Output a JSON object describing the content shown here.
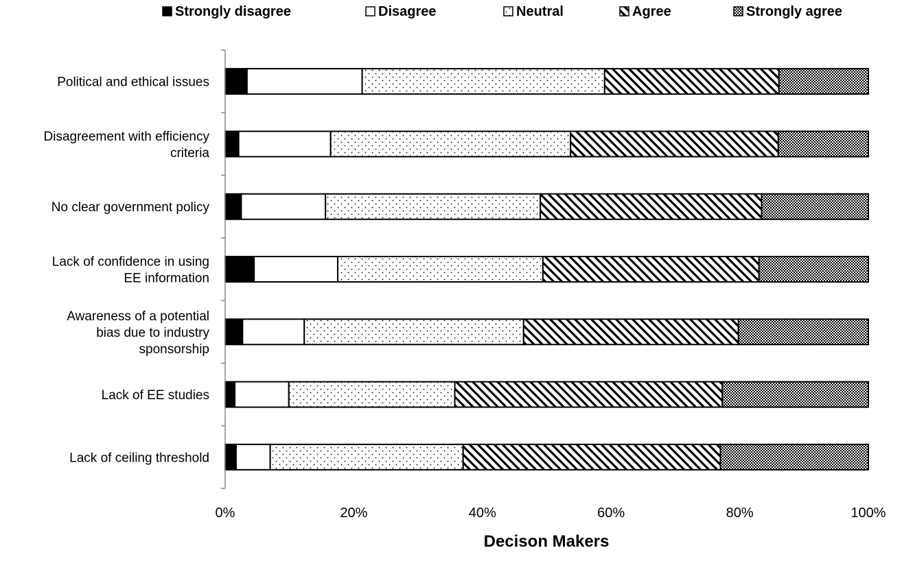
{
  "chart_data": {
    "type": "bar",
    "orientation": "horizontal",
    "stacked": "percent",
    "title": "",
    "xlabel": "Decison Makers",
    "ylabel": "",
    "xlim": [
      0,
      100
    ],
    "x_ticks": [
      "0%",
      "20%",
      "40%",
      "60%",
      "80%",
      "100%"
    ],
    "legend_position": "top",
    "categories": [
      [
        "Political and ethical issues"
      ],
      [
        "Disagreement with efficiency",
        "criteria"
      ],
      [
        "No clear government policy"
      ],
      [
        "Lack of confidence in using",
        "EE information"
      ],
      [
        "Awareness of a potential",
        "bias due to industry",
        "sponsorship"
      ],
      [
        "Lack of EE studies"
      ],
      [
        "Lack of ceiling threshold"
      ]
    ],
    "series": [
      {
        "name": "Strongly disagree",
        "pattern": "solid",
        "values": [
          3.4,
          2.1,
          2.5,
          4.5,
          2.7,
          1.5,
          1.7
        ]
      },
      {
        "name": "Disagree",
        "pattern": "white",
        "values": [
          17.9,
          14.3,
          13.1,
          13.0,
          9.6,
          8.4,
          5.3
        ]
      },
      {
        "name": "Neutral",
        "pattern": "dots",
        "values": [
          37.7,
          37.3,
          33.4,
          31.9,
          34.1,
          25.8,
          30.0
        ]
      },
      {
        "name": "Agree",
        "pattern": "diagonal",
        "values": [
          27.1,
          32.3,
          34.4,
          33.6,
          33.4,
          41.6,
          40.0
        ]
      },
      {
        "name": "Strongly agree",
        "pattern": "checker",
        "values": [
          13.9,
          14.0,
          16.6,
          17.0,
          20.2,
          22.7,
          23.0
        ]
      }
    ]
  }
}
